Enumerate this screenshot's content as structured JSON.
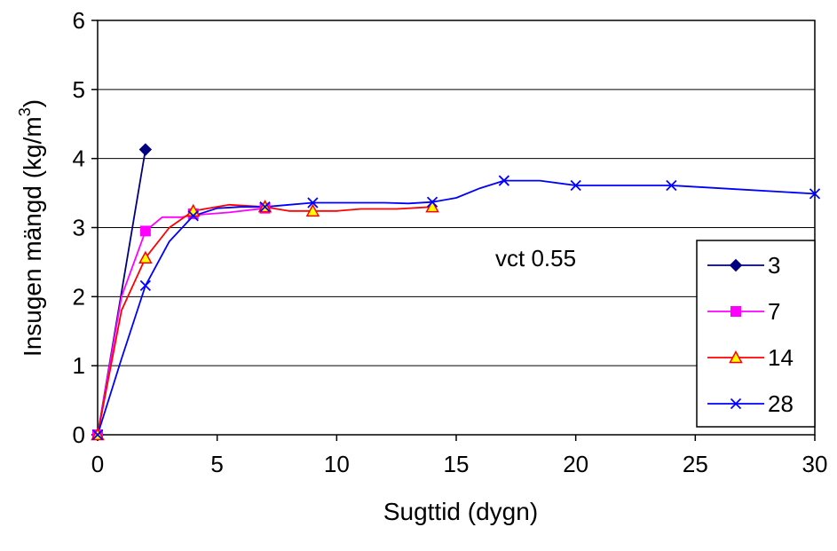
{
  "chart_data": {
    "type": "line",
    "title": "",
    "xlabel": "Sugttid (dygn)",
    "ylabel_main": "Insugen mängd (kg/m",
    "ylabel_sup": "3",
    "ylabel_close": ")",
    "annotation": "vct 0.55",
    "xlim": [
      0,
      30
    ],
    "ylim": [
      0,
      6
    ],
    "x_ticks": [
      0,
      5,
      10,
      15,
      20,
      25,
      30
    ],
    "y_ticks": [
      0,
      1,
      2,
      3,
      4,
      5,
      6
    ],
    "grid": "horizontal",
    "legend_position": "right",
    "series": [
      {
        "name": "3",
        "color": "#000080",
        "marker": "diamond",
        "points": [
          [
            0,
            0
          ],
          [
            2,
            4.13
          ]
        ],
        "line": [
          [
            0,
            0
          ],
          [
            2,
            4.13
          ]
        ]
      },
      {
        "name": "7",
        "color": "#ff00ff",
        "marker": "square",
        "points": [
          [
            0,
            0
          ],
          [
            2,
            2.95
          ],
          [
            4,
            3.2
          ],
          [
            7,
            3.28
          ]
        ],
        "line": [
          [
            0,
            0
          ],
          [
            1,
            2.0
          ],
          [
            2,
            2.95
          ],
          [
            2.7,
            3.15
          ],
          [
            3.5,
            3.15
          ],
          [
            4,
            3.18
          ],
          [
            5.5,
            3.22
          ],
          [
            7,
            3.28
          ]
        ]
      },
      {
        "name": "14",
        "color": "#ff0000",
        "marker": "triangle",
        "marker_fill": "#ffff00",
        "points": [
          [
            0,
            0
          ],
          [
            2,
            2.56
          ],
          [
            4,
            3.24
          ],
          [
            7,
            3.3
          ],
          [
            9,
            3.24
          ],
          [
            14,
            3.3
          ]
        ],
        "line": [
          [
            0,
            0
          ],
          [
            1,
            1.8
          ],
          [
            2,
            2.56
          ],
          [
            3,
            3.0
          ],
          [
            4,
            3.24
          ],
          [
            5.5,
            3.33
          ],
          [
            7,
            3.3
          ],
          [
            8,
            3.24
          ],
          [
            9,
            3.24
          ],
          [
            10,
            3.24
          ],
          [
            11,
            3.27
          ],
          [
            12.5,
            3.27
          ],
          [
            14,
            3.3
          ]
        ]
      },
      {
        "name": "28",
        "color": "#0000ff",
        "marker": "x",
        "points": [
          [
            0,
            0
          ],
          [
            2,
            2.16
          ],
          [
            4,
            3.17
          ],
          [
            7,
            3.3
          ],
          [
            9,
            3.36
          ],
          [
            14,
            3.37
          ],
          [
            17,
            3.68
          ],
          [
            20,
            3.61
          ],
          [
            24,
            3.61
          ],
          [
            30,
            3.49
          ]
        ],
        "line": [
          [
            0,
            0
          ],
          [
            1,
            1.1
          ],
          [
            2,
            2.16
          ],
          [
            3,
            2.8
          ],
          [
            4,
            3.17
          ],
          [
            5,
            3.28
          ],
          [
            6,
            3.3
          ],
          [
            7,
            3.3
          ],
          [
            8,
            3.33
          ],
          [
            9,
            3.36
          ],
          [
            11,
            3.36
          ],
          [
            12,
            3.36
          ],
          [
            13,
            3.35
          ],
          [
            14,
            3.37
          ],
          [
            15,
            3.43
          ],
          [
            16,
            3.57
          ],
          [
            17,
            3.68
          ],
          [
            18.5,
            3.68
          ],
          [
            20,
            3.61
          ],
          [
            24,
            3.61
          ],
          [
            27,
            3.55
          ],
          [
            30,
            3.49
          ]
        ]
      }
    ]
  }
}
